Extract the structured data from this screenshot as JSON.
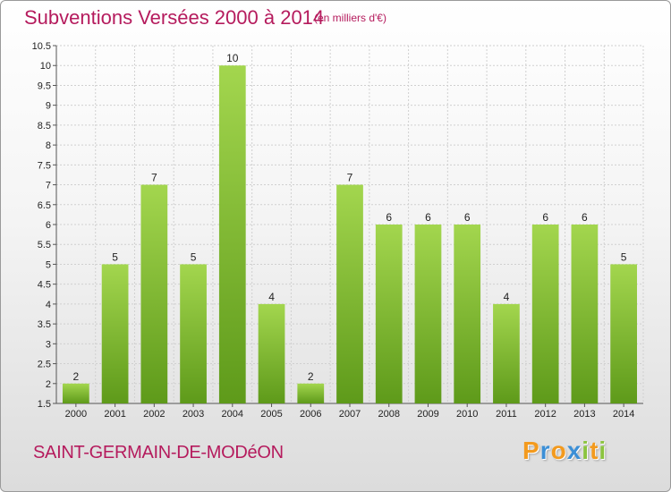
{
  "header": {
    "title": "Subventions Versées 2000 à 2014",
    "subtitle": "(en milliers d'€)"
  },
  "footer": {
    "commune": "SAINT-GERMAIN-DE-MODéON",
    "logo_letters": [
      {
        "char": "P",
        "color": "#f39a1e"
      },
      {
        "char": "r",
        "color": "#3c8fd6"
      },
      {
        "char": "o",
        "color": "#f39a1e"
      },
      {
        "char": "x",
        "color": "#3c8fd6"
      },
      {
        "char": "i",
        "color": "#8bc43f"
      },
      {
        "char": "t",
        "color": "#f39a1e"
      },
      {
        "char": "i",
        "color": "#8bc43f"
      }
    ]
  },
  "colors": {
    "bar_top": "#a3d64e",
    "bar_bottom": "#5e9a1a",
    "grid": "#d0d0d0",
    "title": "#b51b5d"
  },
  "chart_data": {
    "type": "bar",
    "title": "Subventions Versées 2000 à 2014",
    "subtitle": "(en milliers d'€)",
    "categories": [
      "2000",
      "2001",
      "2002",
      "2003",
      "2004",
      "2005",
      "2006",
      "2007",
      "2008",
      "2009",
      "2010",
      "2011",
      "2012",
      "2013",
      "2014"
    ],
    "values": [
      2,
      5,
      7,
      5,
      10,
      4,
      2,
      7,
      6,
      6,
      6,
      4,
      6,
      6,
      5
    ],
    "ylim": [
      1.5,
      10.5
    ],
    "yticks": [
      1.5,
      2,
      2.5,
      3,
      3.5,
      4,
      4.5,
      5,
      5.5,
      6,
      6.5,
      7,
      7.5,
      8,
      8.5,
      9,
      9.5,
      10,
      10.5
    ],
    "ytick_labels": [
      "1.5",
      "2",
      "2.5",
      "3",
      "3.5",
      "4",
      "4.5",
      "5",
      "5.5",
      "6",
      "6.5",
      "7",
      "7.5",
      "8",
      "8.5",
      "9",
      "9.5",
      "10",
      "10.5"
    ],
    "grid": true,
    "data_labels": true
  }
}
